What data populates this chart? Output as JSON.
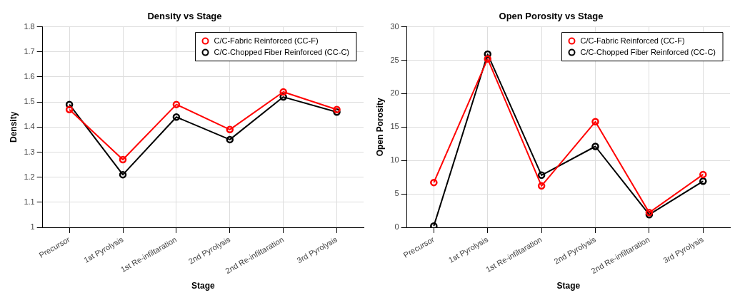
{
  "chart_data": [
    {
      "type": "line",
      "title": "Density vs Stage",
      "xlabel": "Stage",
      "ylabel": "Density",
      "categories": [
        "Precursor",
        "1st Pyrolysis",
        "1st Re-infiltaration",
        "2nd Pyrolysis",
        "2nd Re-infiltaration",
        "3rd Pyrolysis"
      ],
      "series": [
        {
          "name": "C/C-Fabric Reinforced (CC-F)",
          "color": "#ff0000",
          "values": [
            1.47,
            1.27,
            1.49,
            1.39,
            1.54,
            1.47
          ]
        },
        {
          "name": "C/C-Chopped Fiber Reinforced (CC-C)",
          "color": "#000000",
          "values": [
            1.49,
            1.21,
            1.44,
            1.35,
            1.52,
            1.46
          ]
        }
      ],
      "ylim": [
        1,
        1.8
      ],
      "yticks": [
        1,
        1.1,
        1.2,
        1.3,
        1.4,
        1.5,
        1.6,
        1.7,
        1.8
      ],
      "grid": true,
      "legend": "top right",
      "marker": "circle",
      "line_style": "solid"
    },
    {
      "type": "line",
      "title": "Open Porosity vs Stage",
      "xlabel": "Stage",
      "ylabel": "Open Porosity",
      "categories": [
        "Precursor",
        "1st Pyrolysis",
        "1st Re-infiltaration",
        "2nd Pyrolysis",
        "2nd Re-infiltaration",
        "3rd Pyrolysis"
      ],
      "series": [
        {
          "name": "C/C-Fabric Reinforced (CC-F)",
          "color": "#ff0000",
          "values": [
            6.7,
            25.2,
            6.2,
            15.8,
            2.2,
            7.9
          ]
        },
        {
          "name": "C/C-Chopped Fiber Reinforced (CC-C)",
          "color": "#000000",
          "values": [
            0.2,
            25.9,
            7.8,
            12.1,
            1.9,
            6.9
          ]
        }
      ],
      "ylim": [
        0,
        30
      ],
      "yticks": [
        0,
        5,
        10,
        15,
        20,
        25,
        30
      ],
      "grid": true,
      "legend": "top right",
      "marker": "circle",
      "line_style": "solid"
    }
  ]
}
